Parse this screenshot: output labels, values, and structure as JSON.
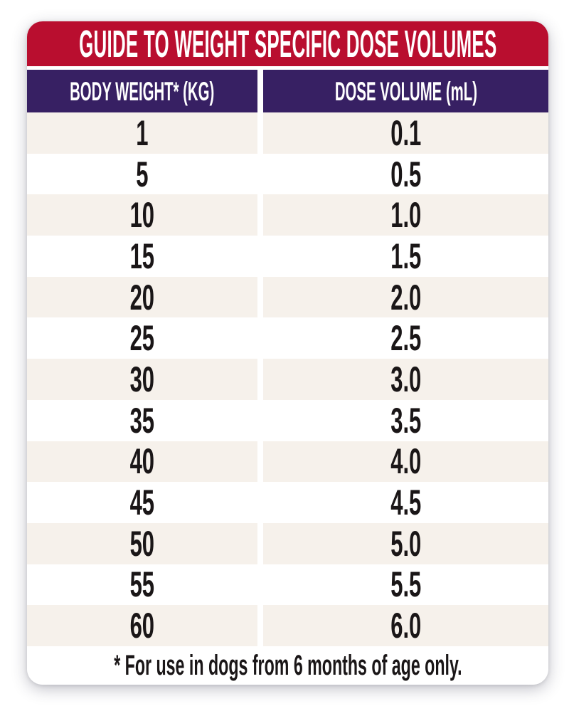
{
  "table": {
    "title": "GUIDE TO WEIGHT SPECIFIC DOSE VOLUMES",
    "columns": [
      "BODY WEIGHT* (KG)",
      "DOSE VOLUME (mL)"
    ],
    "footnote": "* For use in dogs from 6 months of age only."
  },
  "colors": {
    "title_bar_red": "#B90E2F",
    "header_purple": "#372063",
    "row_alt_beige": "#F6F1EB",
    "row_white": "#FFFFFF",
    "text_dark": "#1A1617",
    "text_light": "#FFFFFF"
  },
  "chart_data": {
    "type": "table",
    "title": "GUIDE TO WEIGHT SPECIFIC DOSE VOLUMES",
    "columns": [
      "BODY WEIGHT* (KG)",
      "DOSE VOLUME (mL)"
    ],
    "rows": [
      [
        "1",
        "0.1"
      ],
      [
        "5",
        "0.5"
      ],
      [
        "10",
        "1.0"
      ],
      [
        "15",
        "1.5"
      ],
      [
        "20",
        "2.0"
      ],
      [
        "25",
        "2.5"
      ],
      [
        "30",
        "3.0"
      ],
      [
        "35",
        "3.5"
      ],
      [
        "40",
        "4.0"
      ],
      [
        "45",
        "4.5"
      ],
      [
        "50",
        "5.0"
      ],
      [
        "55",
        "5.5"
      ],
      [
        "60",
        "6.0"
      ]
    ],
    "footnote": "* For use in dogs from 6 months of age only.",
    "layout": {
      "alternating_row_shading": "odd rows beige, even rows white",
      "column_divider": "white vertical gap between columns",
      "corners": "rounded card with drop shadow"
    }
  }
}
